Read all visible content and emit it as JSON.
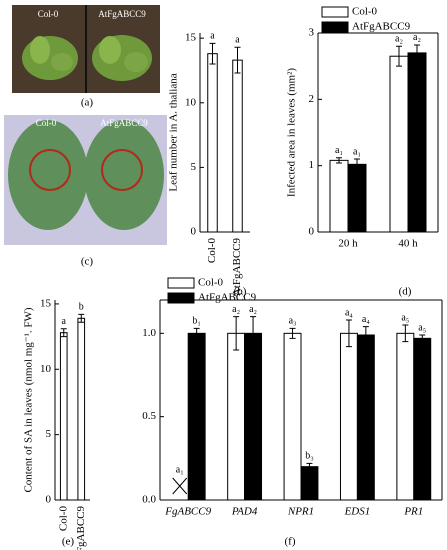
{
  "photos": [
    {
      "labels": [
        "Col-0",
        "AtFgABCC9"
      ],
      "caption": "(a)"
    },
    {
      "labels": [
        "Col-0",
        "AtFgABCC9"
      ],
      "caption": "(c)"
    }
  ],
  "chart_data": [
    {
      "type": "bar",
      "ylabel": "Leaf number in A. thaliana",
      "caption": "(b)",
      "categories": [
        "Col-0",
        "AtFgABCC9"
      ],
      "values": [
        13.8,
        13.3
      ],
      "errors": [
        0.8,
        1.0
      ],
      "letters": [
        "a",
        "a"
      ],
      "color": "#ffffff",
      "ylim": [
        0,
        15.4
      ],
      "yticks": [
        0,
        5,
        10,
        15
      ]
    },
    {
      "type": "bar",
      "ylabel": "Infected area in leaves (mm²)",
      "caption": "(d)",
      "categories": [
        "20 h",
        "40 h"
      ],
      "series": [
        {
          "name": "Col-0",
          "color": "#ffffff",
          "values": [
            1.08,
            2.65
          ],
          "errors": [
            0.04,
            0.15
          ],
          "letters": [
            "a₁",
            "a₂"
          ]
        },
        {
          "name": "AtFgABCC9",
          "color": "#000000",
          "values": [
            1.02,
            2.7
          ],
          "errors": [
            0.08,
            0.12
          ],
          "letters": [
            "a₁",
            "a₂"
          ]
        }
      ],
      "ylim": [
        0,
        3
      ],
      "yticks": [
        0,
        1,
        2,
        3
      ]
    },
    {
      "type": "bar",
      "ylabel": "Content of SA in leaves (nmol mg⁻¹. FW)",
      "caption": "(e)",
      "categories": [
        "Col-0",
        "AtFgABCC9"
      ],
      "values": [
        12.8,
        13.9
      ],
      "errors": [
        0.3,
        0.3
      ],
      "letters": [
        "a",
        "b"
      ],
      "color": "#ffffff",
      "ylim": [
        0,
        15.3
      ],
      "yticks": [
        0,
        5,
        10,
        15
      ]
    },
    {
      "type": "bar",
      "caption": "(f)",
      "categories": [
        "FgABCC9",
        "PAD4",
        "NPR1",
        "EDS1",
        "PR1"
      ],
      "series": [
        {
          "name": "Col-0",
          "color": "#ffffff",
          "values": [
            0,
            1.0,
            1.0,
            1.0,
            1.0
          ],
          "errors": [
            0,
            0.1,
            0.03,
            0.08,
            0.05
          ],
          "letters": [
            "a₁",
            "a₂",
            "a₃",
            "a₄",
            "a₅"
          ]
        },
        {
          "name": "AtFgABCC9",
          "color": "#000000",
          "values": [
            1.0,
            1.0,
            0.2,
            0.99,
            0.97
          ],
          "errors": [
            0.03,
            0.1,
            0.02,
            0.05,
            0.02
          ],
          "letters": [
            "b₁",
            "a₂",
            "b₃",
            "a₄",
            "a₅"
          ]
        }
      ],
      "ylim": [
        0,
        1.2
      ],
      "yticks": [
        {
          "value": 0,
          "label": "0.0"
        },
        {
          "value": 0.5,
          "label": "0.5"
        },
        {
          "value": 1.0,
          "label": "1.0"
        }
      ]
    }
  ]
}
